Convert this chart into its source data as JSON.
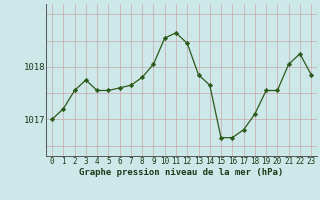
{
  "x": [
    0,
    1,
    2,
    3,
    4,
    5,
    6,
    7,
    8,
    9,
    10,
    11,
    12,
    13,
    14,
    15,
    16,
    17,
    18,
    19,
    20,
    21,
    22,
    23
  ],
  "y": [
    1017.0,
    1017.2,
    1017.55,
    1017.75,
    1017.55,
    1017.55,
    1017.6,
    1017.65,
    1017.8,
    1018.05,
    1018.55,
    1018.65,
    1018.45,
    1017.85,
    1017.65,
    1016.65,
    1016.65,
    1016.8,
    1017.1,
    1017.55,
    1017.55,
    1018.05,
    1018.25,
    1017.85
  ],
  "line_color": "#2d5a1b",
  "marker_color": "#2d5a1b",
  "bg_color": "#cce8e8",
  "grid_color": "#b8d4d4",
  "ytick_labels": [
    "1017",
    "1018"
  ],
  "ytick_values": [
    1017.0,
    1018.0
  ],
  "xlabel": "Graphe pression niveau de la mer (hPa)",
  "xtick_labels": [
    "0",
    "1",
    "2",
    "3",
    "4",
    "5",
    "6",
    "7",
    "8",
    "9",
    "10",
    "11",
    "12",
    "13",
    "14",
    "15",
    "16",
    "17",
    "18",
    "19",
    "20",
    "21",
    "22",
    "23"
  ],
  "ylim_min": 1016.3,
  "ylim_max": 1019.2,
  "xlim_min": -0.5,
  "xlim_max": 23.5
}
